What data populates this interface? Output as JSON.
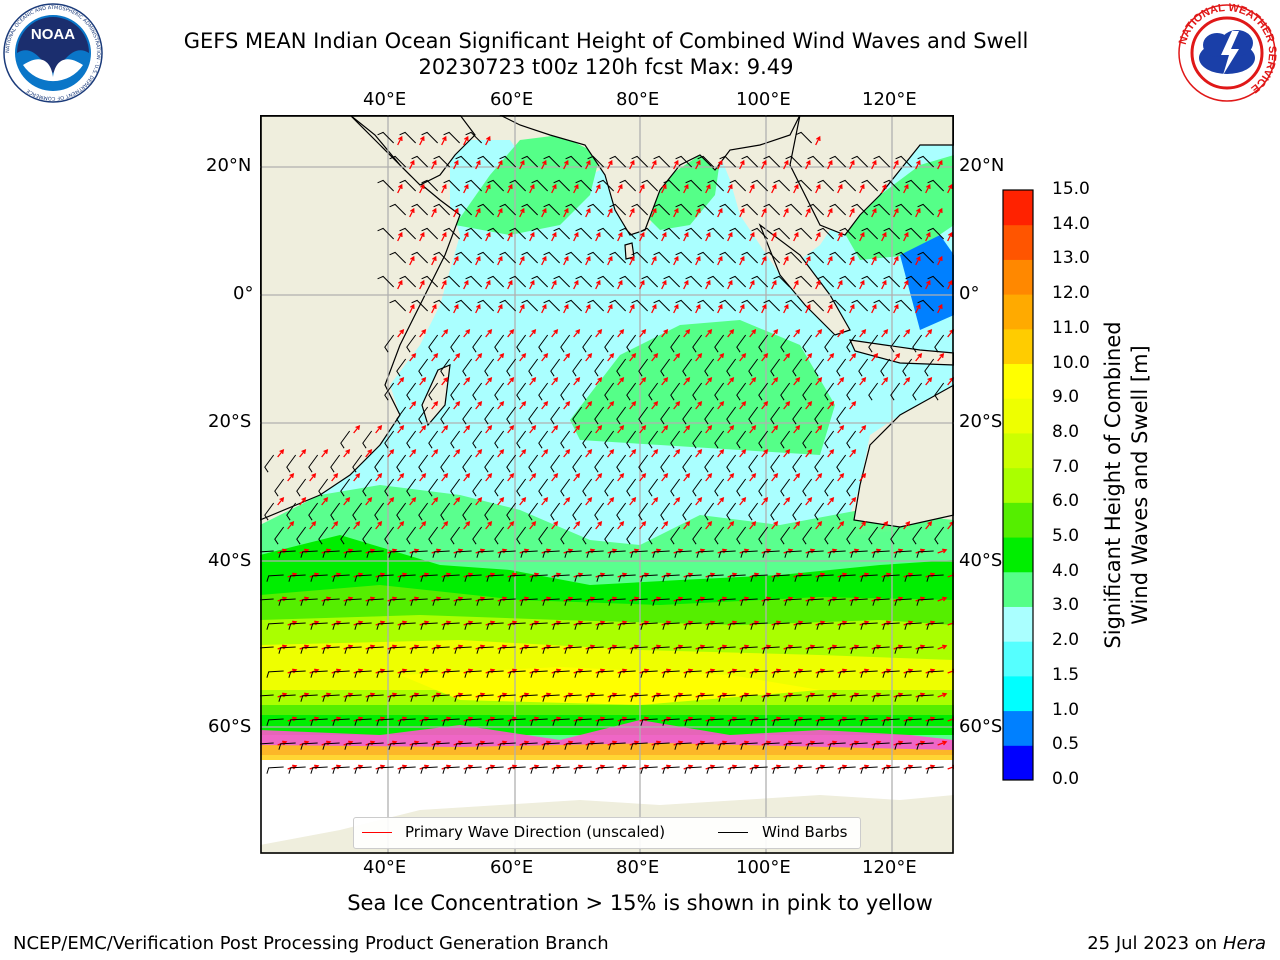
{
  "header": {
    "title_line1": "GEFS MEAN Indian Ocean Significant Height of Combined Wind Waves and Swell",
    "title_line2": "20230723 t00z 120h fcst   Max: 9.49"
  },
  "logos": {
    "noaa_text": "NOAA",
    "noaa_ring_text": "NATIONAL OCEANIC AND ATMOSPHERIC ADMINISTRATION · U.S. DEPARTMENT OF COMMERCE",
    "nws_ring_text": "NATIONAL WEATHER SERVICE"
  },
  "map": {
    "lon_labels": [
      "40°E",
      "60°E",
      "80°E",
      "100°E",
      "120°E"
    ],
    "lat_labels": [
      "20°N",
      "0°",
      "20°S",
      "40°S",
      "60°S"
    ],
    "legend": {
      "primary_wave": "Primary Wave Direction (unscaled)",
      "wind_barbs": "Wind Barbs"
    },
    "colors": {
      "land": "#efeedd",
      "ocean_base": "#aaffff",
      "wave_arrow": "#ff0000",
      "barb": "#000000",
      "sea_ice": "#ff55cc"
    }
  },
  "colorbar": {
    "label_line1": "Significant Height of Combined",
    "label_line2": "Wind Waves and Swell [m]",
    "ticks": [
      "0.0",
      "0.5",
      "1.0",
      "1.5",
      "2.0",
      "3.0",
      "4.0",
      "5.0",
      "6.0",
      "7.0",
      "8.0",
      "9.0",
      "10.0",
      "11.0",
      "12.0",
      "13.0",
      "14.0",
      "15.0"
    ],
    "colors": [
      "#0000ff",
      "#0080ff",
      "#00ffff",
      "#55ffff",
      "#aaffff",
      "#55ff88",
      "#00ee00",
      "#55ee00",
      "#aaff00",
      "#ccff00",
      "#eeff00",
      "#ffff00",
      "#ffcc00",
      "#ffaa00",
      "#ff8800",
      "#ff5500",
      "#ff2200",
      "#ff0000"
    ]
  },
  "subtitle": "Sea Ice Concentration > 15% is shown in pink to yellow",
  "footer": {
    "left": "NCEP/EMC/Verification Post Processing Product Generation Branch",
    "right_date": "25 Jul 2023 on",
    "right_machine": "Hera"
  }
}
